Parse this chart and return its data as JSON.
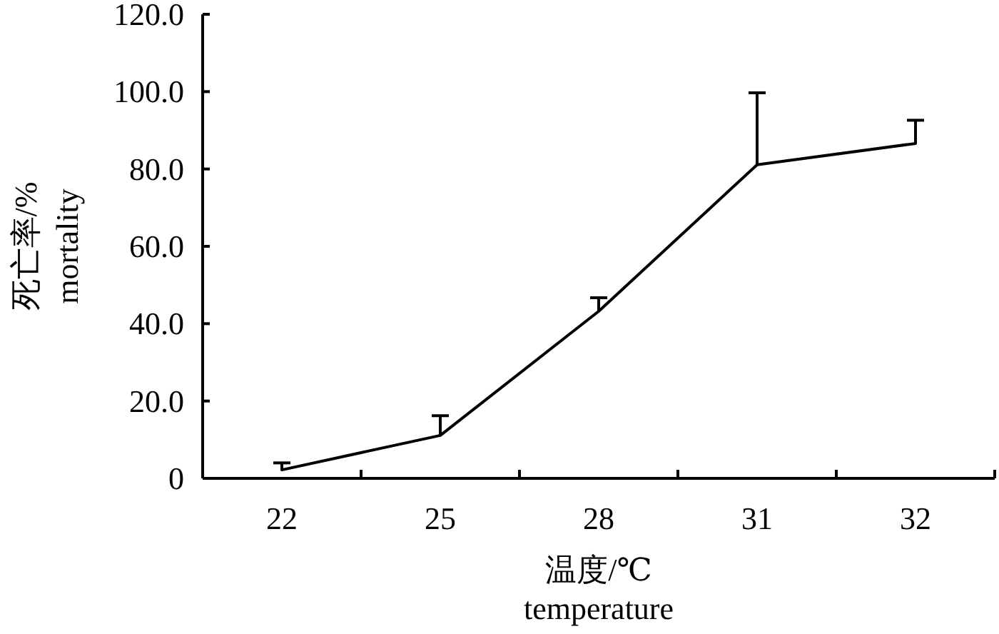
{
  "chart_data": {
    "type": "line",
    "xlabel": "温度/℃\ntemperature",
    "ylabel": "死亡率/%\nmortality",
    "categories": [
      "22",
      "25",
      "28",
      "31",
      "32"
    ],
    "values": [
      2.2,
      11.1,
      43.2,
      81.1,
      86.6
    ],
    "errors": [
      [
        2.2,
        4.0
      ],
      [
        11.1,
        16.2
      ],
      [
        43.2,
        46.7
      ],
      [
        81.1,
        99.7
      ],
      [
        86.6,
        92.6
      ]
    ],
    "color": "#000000",
    "line_style": "solid",
    "ylim": [
      0,
      120
    ],
    "yticks": [
      0,
      {
        "value": 20,
        "label": "20.0"
      },
      {
        "value": 40,
        "label": "40.0"
      },
      {
        "value": 60,
        "label": "60.0"
      },
      {
        "value": 80,
        "label": "80.0"
      },
      {
        "value": 100,
        "label": "100.0"
      },
      {
        "value": 120,
        "label": "120.0"
      }
    ]
  }
}
